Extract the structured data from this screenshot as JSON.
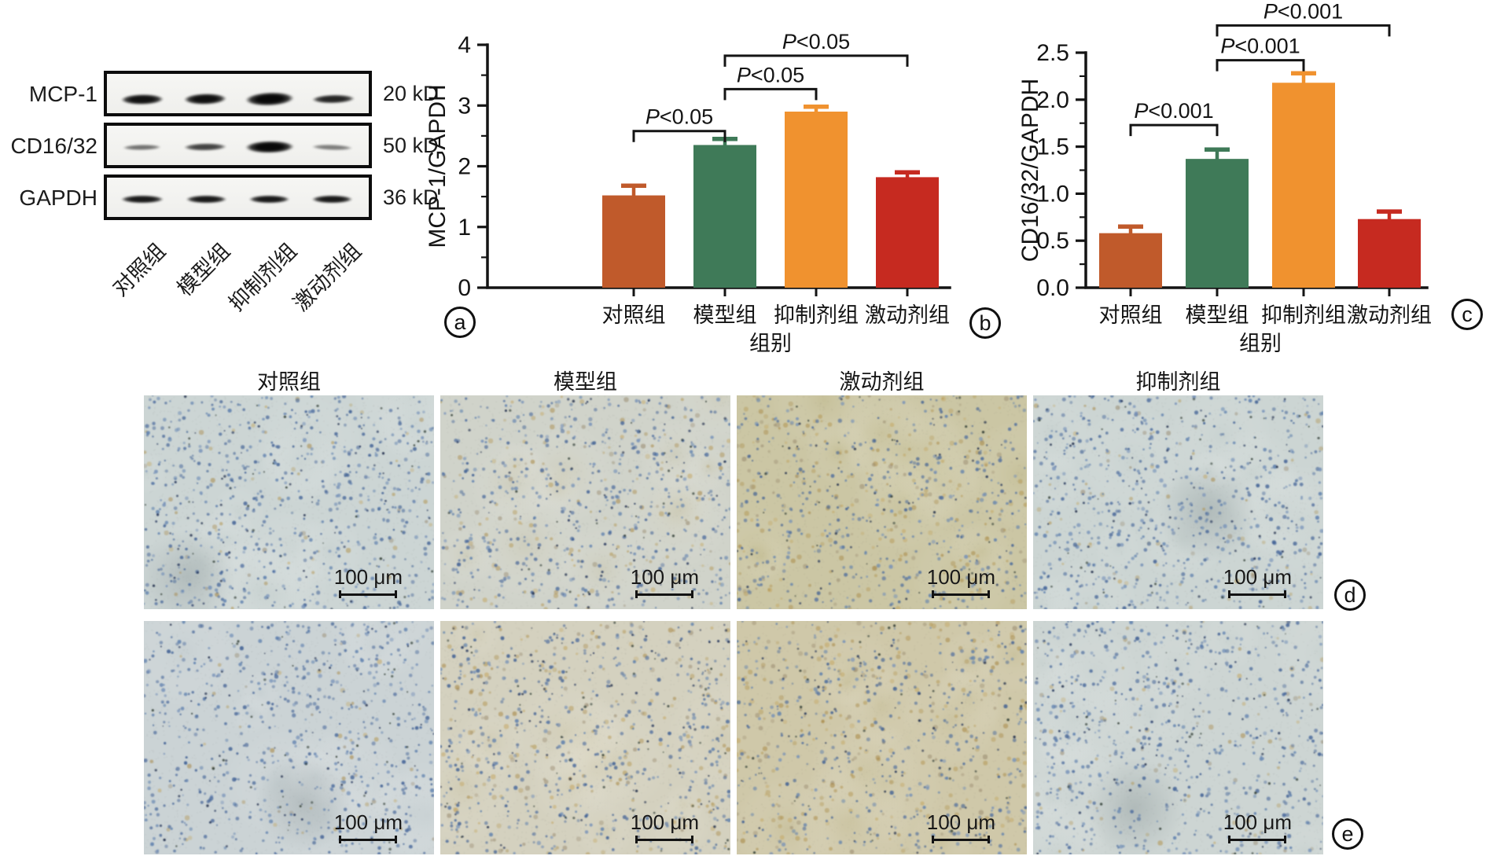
{
  "figure": {
    "background": "#ffffff",
    "panel_labels": {
      "a": "a",
      "b": "b",
      "c": "c",
      "d": "d",
      "e": "e"
    }
  },
  "western_blot": {
    "lane_labels": [
      "对照组",
      "模型组",
      "抑制剂组",
      "激动剂组"
    ],
    "rows": [
      {
        "protein": "MCP-1",
        "weight": "20 kD",
        "bands": [
          {
            "x": 0.03,
            "w": 0.21,
            "h": 17,
            "o": 0.96,
            "r": -1
          },
          {
            "x": 0.27,
            "w": 0.21,
            "h": 18,
            "o": 0.97,
            "r": -1.5
          },
          {
            "x": 0.5,
            "w": 0.24,
            "h": 22,
            "o": 1,
            "r": -2.5
          },
          {
            "x": 0.76,
            "w": 0.21,
            "h": 14,
            "o": 0.88,
            "r": -1.5
          }
        ]
      },
      {
        "protein": "CD16/32",
        "weight": "50 kD",
        "bands": [
          {
            "x": 0.04,
            "w": 0.19,
            "h": 9,
            "o": 0.55,
            "r": -1
          },
          {
            "x": 0.27,
            "w": 0.21,
            "h": 12,
            "o": 0.75,
            "r": -1
          },
          {
            "x": 0.5,
            "w": 0.24,
            "h": 20,
            "o": 1,
            "r": -1
          },
          {
            "x": 0.76,
            "w": 0.2,
            "h": 9,
            "o": 0.5,
            "r": 2
          }
        ]
      },
      {
        "protein": "GAPDH",
        "weight": "36 kD",
        "bands": [
          {
            "x": 0.03,
            "w": 0.21,
            "h": 13,
            "o": 0.93,
            "r": 0
          },
          {
            "x": 0.28,
            "w": 0.2,
            "h": 13,
            "o": 0.93,
            "r": 0
          },
          {
            "x": 0.52,
            "w": 0.2,
            "h": 13,
            "o": 0.93,
            "r": 0
          },
          {
            "x": 0.76,
            "w": 0.2,
            "h": 13,
            "o": 0.93,
            "r": 0
          }
        ]
      }
    ]
  },
  "chart_data": [
    {
      "id": "chart-b",
      "type": "bar",
      "panel_label": "b",
      "title": "",
      "xlabel": "组别",
      "ylabel": "MCP-1/GAPDH",
      "categories": [
        "对照组",
        "模型组",
        "抑制剂组",
        "激动剂组"
      ],
      "values": [
        1.52,
        2.35,
        2.9,
        1.82
      ],
      "errors": [
        0.16,
        0.1,
        0.08,
        0.08
      ],
      "bar_colors": [
        "#c05a2b",
        "#3f7a58",
        "#f0922f",
        "#c62a20"
      ],
      "ylim": [
        0,
        4
      ],
      "ytick_labels": [
        "0",
        "1",
        "2",
        "3",
        "4"
      ],
      "minor_step": 0.5,
      "grid": false,
      "significance": [
        {
          "from": 0,
          "to": 1,
          "label": "P<0.05",
          "y": 2.58
        },
        {
          "from": 1,
          "to": 2,
          "label": "P<0.05",
          "y": 3.27
        },
        {
          "from": 1,
          "to": 3,
          "label": "P<0.05",
          "y": 3.82
        }
      ]
    },
    {
      "id": "chart-c",
      "type": "bar",
      "panel_label": "c",
      "title": "",
      "xlabel": "组别",
      "ylabel": "CD16/32/GAPDH",
      "categories": [
        "对照组",
        "模型组",
        "抑制剂组",
        "激动剂组"
      ],
      "values": [
        0.58,
        1.37,
        2.18,
        0.73
      ],
      "errors": [
        0.07,
        0.1,
        0.1,
        0.08
      ],
      "bar_colors": [
        "#c05a2b",
        "#3f7a58",
        "#f0922f",
        "#c62a20"
      ],
      "ylim": [
        0,
        2.5
      ],
      "ytick_labels": [
        "0.0",
        "0.5",
        "1.0",
        "1.5",
        "2.0",
        "2.5"
      ],
      "minor_step": 0.25,
      "grid": false,
      "significance": [
        {
          "from": 0,
          "to": 1,
          "label": "P<0.001",
          "y": 1.73
        },
        {
          "from": 1,
          "to": 2,
          "label": "P<0.001",
          "y": 2.42
        },
        {
          "from": 1,
          "to": 3,
          "label": "P<0.001",
          "y": 2.79
        }
      ]
    }
  ],
  "micrographs": {
    "column_headers": [
      "对照组",
      "模型组",
      "激动剂组",
      "抑制剂组"
    ],
    "scale_label": "100 μm",
    "rows": [
      {
        "panel_label": "d",
        "cells": [
          {
            "group": "对照组",
            "base": "#ccd5d4",
            "blob": "#c2cdcb",
            "light": "#e8edeb",
            "dots": {
              "blue": 620,
              "tan": 60,
              "dark": 110
            },
            "vacuoles": 2,
            "smudge": {
              "x": 0.15,
              "y": 0.85
            }
          },
          {
            "group": "模型组",
            "base": "#d0d3ca",
            "blob": "#c7bf9c",
            "light": "#e9ebdf",
            "dots": {
              "blue": 520,
              "tan": 160,
              "dark": 95
            },
            "vacuoles": 3,
            "smudge": null
          },
          {
            "group": "激动剂组",
            "base": "#cbc6a4",
            "blob": "#bab27f",
            "light": "#e6e0bf",
            "dots": {
              "blue": 430,
              "tan": 260,
              "dark": 85
            },
            "vacuoles": 3,
            "smudge": null
          },
          {
            "group": "抑制剂组",
            "base": "#ccd5d3",
            "blob": "#c2cdcb",
            "light": "#e9edeb",
            "dots": {
              "blue": 610,
              "tan": 80,
              "dark": 105
            },
            "vacuoles": 2,
            "smudge": {
              "x": 0.6,
              "y": 0.55
            }
          }
        ]
      },
      {
        "panel_label": "e",
        "cells": [
          {
            "group": "对照组",
            "base": "#cbd3d5",
            "blob": "#c1cbce",
            "light": "#e6ebec",
            "dots": {
              "blue": 630,
              "tan": 55,
              "dark": 105
            },
            "vacuoles": 2,
            "smudge": {
              "x": 0.55,
              "y": 0.78
            }
          },
          {
            "group": "模型组",
            "base": "#d4d1bf",
            "blob": "#c9c19e",
            "light": "#ece8d6",
            "dots": {
              "blue": 500,
              "tan": 240,
              "dark": 150
            },
            "vacuoles": 4,
            "smudge": null
          },
          {
            "group": "激动剂组",
            "base": "#cfc8a9",
            "blob": "#beb588",
            "light": "#e9e3c8",
            "dots": {
              "blue": 440,
              "tan": 300,
              "dark": 95
            },
            "vacuoles": 5,
            "smudge": null
          },
          {
            "group": "抑制剂组",
            "base": "#cdd5d3",
            "blob": "#c3cecc",
            "light": "#eaeeec",
            "dots": {
              "blue": 615,
              "tan": 95,
              "dark": 100
            },
            "vacuoles": 3,
            "smudge": {
              "x": 0.35,
              "y": 0.8
            }
          }
        ]
      }
    ]
  }
}
